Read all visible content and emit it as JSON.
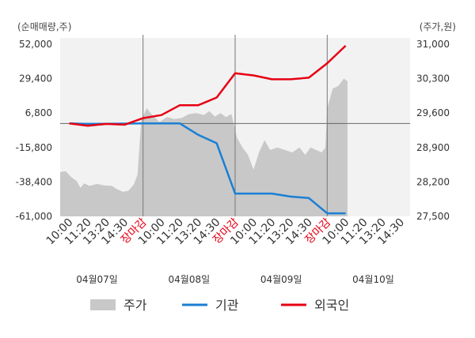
{
  "chart_data": {
    "type": "line",
    "left_axis_unit": "(순매매량,주)",
    "right_axis_unit": "(주가,원)",
    "left_ticks": [
      "52,000",
      "29,400",
      "6,800",
      "-15,800",
      "-38,400",
      "-61,000"
    ],
    "right_ticks": [
      "31,000",
      "30,300",
      "29,600",
      "28,900",
      "28,200",
      "27,500"
    ],
    "ylim_left": [
      -61000,
      52000
    ],
    "ylim_right": [
      27500,
      31000
    ],
    "x_labels": [
      {
        "text": "10:00",
        "close": false
      },
      {
        "text": "11:20",
        "close": false
      },
      {
        "text": "13:20",
        "close": false
      },
      {
        "text": "14:30",
        "close": false
      },
      {
        "text": "장마감",
        "close": true
      },
      {
        "text": "10:00",
        "close": false
      },
      {
        "text": "11:20",
        "close": false
      },
      {
        "text": "13:20",
        "close": false
      },
      {
        "text": "14:30",
        "close": false
      },
      {
        "text": "장마감",
        "close": true
      },
      {
        "text": "10:00",
        "close": false
      },
      {
        "text": "11:20",
        "close": false
      },
      {
        "text": "13:20",
        "close": false
      },
      {
        "text": "14:30",
        "close": false
      },
      {
        "text": "장마감",
        "close": true
      },
      {
        "text": "10:00",
        "close": false
      },
      {
        "text": "11:20",
        "close": false
      },
      {
        "text": "13:20",
        "close": false
      },
      {
        "text": "14:30",
        "close": false
      }
    ],
    "dates": [
      "04월07일",
      "04월08일",
      "04월09일",
      "04월10일"
    ],
    "series": [
      {
        "name": "기관",
        "color": "#1a7fd4",
        "axis": "left",
        "points": [
          [
            0.5,
            0
          ],
          [
            1.5,
            -300
          ],
          [
            2.5,
            -200
          ],
          [
            3.5,
            -100
          ],
          [
            4.5,
            0
          ],
          [
            5.5,
            0
          ],
          [
            6.5,
            0
          ],
          [
            7.5,
            -7500
          ],
          [
            8.5,
            -13000
          ],
          [
            9.5,
            -46000
          ],
          [
            10.5,
            -46000
          ],
          [
            11.5,
            -46000
          ],
          [
            12.5,
            -48000
          ],
          [
            13.5,
            -49000
          ],
          [
            14.5,
            -59000
          ],
          [
            15.5,
            -59000
          ]
        ]
      },
      {
        "name": "외국인",
        "color": "#e60012",
        "axis": "left",
        "points": [
          [
            0.5,
            0
          ],
          [
            1.5,
            -1500
          ],
          [
            2.5,
            -300
          ],
          [
            3.5,
            -800
          ],
          [
            4.5,
            3500
          ],
          [
            5.5,
            5500
          ],
          [
            6.5,
            12000
          ],
          [
            7.5,
            12000
          ],
          [
            8.5,
            17000
          ],
          [
            9.5,
            33000
          ],
          [
            10.5,
            31500
          ],
          [
            11.5,
            29000
          ],
          [
            12.5,
            29000
          ],
          [
            13.5,
            30000
          ],
          [
            14.5,
            39500
          ],
          [
            15.5,
            51000
          ]
        ]
      }
    ],
    "price_series": {
      "name": "주가",
      "color": "#c8c8c8",
      "axis": "right",
      "points": [
        [
          0.0,
          28400
        ],
        [
          0.3,
          28420
        ],
        [
          0.6,
          28300
        ],
        [
          0.9,
          28220
        ],
        [
          1.1,
          28080
        ],
        [
          1.3,
          28170
        ],
        [
          1.6,
          28120
        ],
        [
          2.0,
          28160
        ],
        [
          2.4,
          28130
        ],
        [
          2.8,
          28120
        ],
        [
          3.1,
          28050
        ],
        [
          3.4,
          28000
        ],
        [
          3.7,
          28020
        ],
        [
          4.0,
          28150
        ],
        [
          4.2,
          28350
        ],
        [
          4.4,
          29450
        ],
        [
          4.7,
          29700
        ],
        [
          5.0,
          29560
        ],
        [
          5.4,
          29420
        ],
        [
          5.8,
          29520
        ],
        [
          6.2,
          29480
        ],
        [
          6.6,
          29500
        ],
        [
          7.0,
          29580
        ],
        [
          7.4,
          29600
        ],
        [
          7.8,
          29560
        ],
        [
          8.1,
          29640
        ],
        [
          8.4,
          29530
        ],
        [
          8.7,
          29600
        ],
        [
          9.0,
          29520
        ],
        [
          9.3,
          29580
        ],
        [
          9.6,
          29100
        ],
        [
          9.9,
          28900
        ],
        [
          10.2,
          28750
        ],
        [
          10.5,
          28450
        ],
        [
          10.8,
          28800
        ],
        [
          11.1,
          29050
        ],
        [
          11.4,
          28850
        ],
        [
          11.8,
          28900
        ],
        [
          12.2,
          28850
        ],
        [
          12.6,
          28800
        ],
        [
          13.0,
          28900
        ],
        [
          13.3,
          28750
        ],
        [
          13.6,
          28900
        ],
        [
          13.9,
          28850
        ],
        [
          14.2,
          28800
        ],
        [
          14.4,
          28900
        ],
        [
          14.5,
          29700
        ],
        [
          14.8,
          30100
        ],
        [
          15.1,
          30150
        ],
        [
          15.4,
          30300
        ],
        [
          15.6,
          30250
        ]
      ]
    }
  },
  "legend": {
    "items": [
      {
        "label": "주가",
        "color": "#c8c8c8",
        "kind": "area"
      },
      {
        "label": "기관",
        "color": "#1a7fd4",
        "kind": "line"
      },
      {
        "label": "외국인",
        "color": "#e60012",
        "kind": "line"
      }
    ]
  }
}
